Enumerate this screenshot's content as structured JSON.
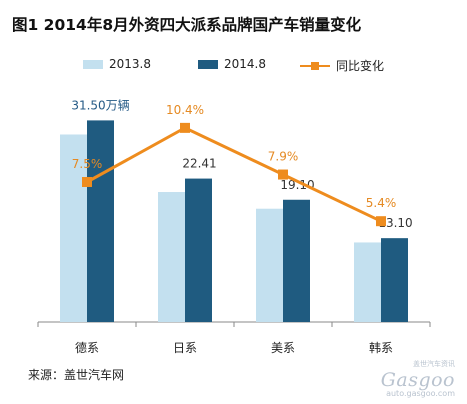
{
  "title": "图1  2014年8月外资四大派系品牌国产车销量变化",
  "source": "来源：盖世汽车网",
  "watermark": {
    "tag": "盖世汽车资讯",
    "brand": "Gasgoo",
    "url": "auto.gasgoo.com"
  },
  "colors": {
    "series_2013": "#c3e0ef",
    "series_2014": "#1f5b80",
    "growth_line": "#ee8c1e",
    "axis": "#888888",
    "data_label_dark": "#245a86",
    "data_label_orange": "#e58a23",
    "data_label_plain": "#333333"
  },
  "legend": {
    "series_2013": "2013.8",
    "series_2014": "2014.8",
    "growth": "同比变化"
  },
  "chart_data": {
    "type": "bar",
    "categories": [
      "德系",
      "日系",
      "美系",
      "韩系"
    ],
    "series": [
      {
        "name": "2013.8",
        "values": [
          29.3,
          20.31,
          17.7,
          12.43
        ]
      },
      {
        "name": "2014.8",
        "values": [
          31.5,
          22.41,
          19.1,
          13.1
        ]
      }
    ],
    "data_labels_2014": [
      "31.50万辆",
      "22.41",
      "19.10",
      "13.10"
    ],
    "line_series": {
      "name": "同比变化",
      "values": [
        7.5,
        10.4,
        7.9,
        5.4
      ],
      "labels": [
        "7.5%",
        "10.4%",
        "7.9%",
        "5.4%"
      ],
      "ylim": [
        0,
        12
      ]
    },
    "ylim": [
      0,
      35
    ],
    "unit": "万辆",
    "grid": false,
    "legend_position": "top"
  }
}
